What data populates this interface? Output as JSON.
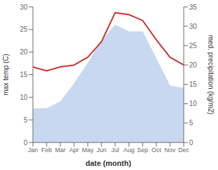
{
  "chart_data": {
    "type": "area",
    "xlabel": "date (month)",
    "ylabel": "max temp (C)",
    "y2label": "med. precipitation (kg/m2)",
    "categories": [
      "Jan",
      "Feb",
      "Mar",
      "Apr",
      "May",
      "Jun",
      "Jul",
      "Aug",
      "Sep",
      "Oct",
      "Nov",
      "Dec"
    ],
    "series": [
      {
        "type": "area",
        "color": "#c8d8f0",
        "values": [
          7.5,
          7.5,
          9.0,
          13.0,
          17.5,
          22.5,
          26.0,
          24.5,
          24.5,
          18.5,
          12.5,
          12.0
        ]
      },
      {
        "type": "line",
        "color": "#cc3333",
        "axis": "y2",
        "values": [
          19.5,
          18.5,
          19.5,
          20.0,
          22.0,
          26.0,
          33.5,
          33.0,
          31.5,
          26.5,
          22.0,
          20.0
        ]
      }
    ],
    "ylim": [
      0,
      30
    ],
    "yticks": [
      0,
      5,
      10,
      15,
      20,
      25,
      30
    ],
    "y2lim": [
      0,
      35
    ],
    "y2ticks": [
      0,
      5,
      10,
      15,
      20,
      25,
      30,
      35
    ],
    "grid": false
  }
}
